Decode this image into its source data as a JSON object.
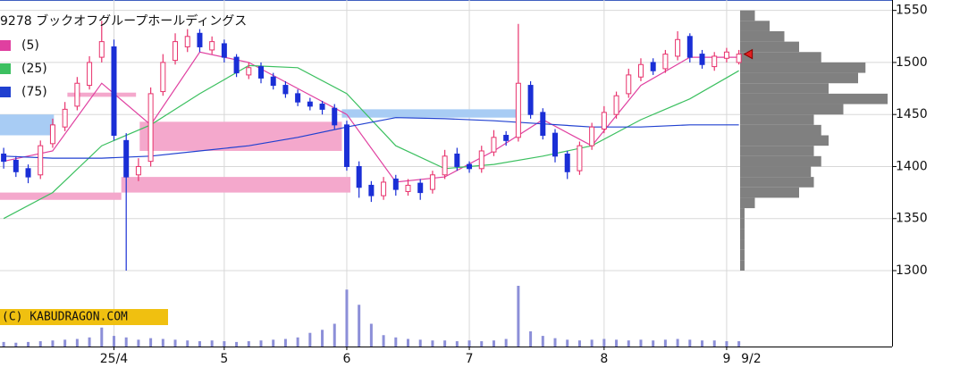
{
  "chart_data": {
    "type": "candlestick",
    "title": "9278 ブックオフグループホールディングス",
    "copyright": "(C) KABUDRAGON.COM",
    "up_color": "#e8336d",
    "down_color": "#1a2fd6",
    "grid": true,
    "xlim": [
      -0.3,
      72.5
    ],
    "ylim": [
      1294,
      1560
    ],
    "yticks": [
      1300,
      1350,
      1400,
      1450,
      1500,
      1550
    ],
    "xticks": [
      {
        "value": 9,
        "label": "25/4"
      },
      {
        "value": 18,
        "label": "5"
      },
      {
        "value": 28,
        "label": "6"
      },
      {
        "value": 38,
        "label": "7"
      },
      {
        "value": 49,
        "label": "8"
      },
      {
        "value": 59,
        "label": "9"
      }
    ],
    "last_label": {
      "value": 61,
      "label": "9/2"
    },
    "x": [
      0,
      1,
      2,
      3,
      4,
      5,
      6,
      7,
      8,
      9,
      10,
      11,
      12,
      13,
      14,
      15,
      16,
      17,
      18,
      19,
      20,
      21,
      22,
      23,
      24,
      25,
      26,
      27,
      28,
      29,
      30,
      31,
      32,
      33,
      34,
      35,
      36,
      37,
      38,
      39,
      40,
      41,
      42,
      43,
      44,
      45,
      46,
      47,
      48,
      49,
      50,
      51,
      52,
      53,
      54,
      55,
      56,
      57,
      58,
      59,
      60
    ],
    "open": [
      1412,
      1406,
      1398,
      1392,
      1422,
      1438,
      1458,
      1478,
      1505,
      1515,
      1425,
      1392,
      1405,
      1472,
      1502,
      1515,
      1528,
      1512,
      1518,
      1505,
      1488,
      1496,
      1486,
      1478,
      1470,
      1462,
      1460,
      1456,
      1440,
      1400,
      1382,
      1372,
      1388,
      1376,
      1384,
      1378,
      1392,
      1412,
      1402,
      1398,
      1414,
      1430,
      1428,
      1478,
      1452,
      1432,
      1412,
      1396,
      1420,
      1436,
      1450,
      1470,
      1486,
      1500,
      1494,
      1506,
      1525,
      1508,
      1496,
      1504,
      1500
    ],
    "high": [
      1418,
      1410,
      1402,
      1425,
      1446,
      1462,
      1486,
      1506,
      1540,
      1522,
      1432,
      1408,
      1476,
      1508,
      1528,
      1532,
      1532,
      1525,
      1522,
      1508,
      1500,
      1500,
      1490,
      1482,
      1474,
      1466,
      1463,
      1460,
      1444,
      1405,
      1386,
      1390,
      1392,
      1388,
      1388,
      1396,
      1416,
      1418,
      1405,
      1420,
      1435,
      1434,
      1537,
      1482,
      1456,
      1436,
      1415,
      1424,
      1442,
      1458,
      1472,
      1494,
      1504,
      1504,
      1512,
      1530,
      1528,
      1512,
      1510,
      1514,
      1512
    ],
    "low": [
      1398,
      1390,
      1384,
      1388,
      1418,
      1434,
      1454,
      1474,
      1500,
      1425,
      1300,
      1386,
      1400,
      1468,
      1498,
      1510,
      1510,
      1508,
      1500,
      1486,
      1484,
      1480,
      1474,
      1466,
      1458,
      1454,
      1450,
      1436,
      1396,
      1370,
      1366,
      1368,
      1372,
      1372,
      1368,
      1374,
      1388,
      1396,
      1394,
      1394,
      1410,
      1420,
      1424,
      1446,
      1426,
      1404,
      1388,
      1392,
      1416,
      1432,
      1446,
      1466,
      1482,
      1488,
      1490,
      1502,
      1500,
      1494,
      1492,
      1500,
      1498
    ],
    "close": [
      1405,
      1395,
      1390,
      1420,
      1440,
      1455,
      1480,
      1500,
      1520,
      1430,
      1390,
      1400,
      1470,
      1500,
      1520,
      1525,
      1515,
      1520,
      1505,
      1490,
      1495,
      1485,
      1478,
      1470,
      1462,
      1458,
      1455,
      1440,
      1400,
      1380,
      1372,
      1385,
      1378,
      1382,
      1375,
      1392,
      1410,
      1400,
      1398,
      1415,
      1428,
      1425,
      1480,
      1450,
      1430,
      1410,
      1395,
      1420,
      1438,
      1452,
      1468,
      1488,
      1498,
      1492,
      1508,
      1522,
      1505,
      1498,
      1506,
      1510,
      1508
    ],
    "series": [
      {
        "name": "(5)",
        "color": "#e040a0",
        "x": [
          0,
          4,
          8,
          12,
          16,
          20,
          24,
          28,
          32,
          36,
          40,
          44,
          48,
          52,
          56,
          60
        ],
        "values": [
          1405,
          1415,
          1480,
          1440,
          1510,
          1500,
          1475,
          1450,
          1385,
          1390,
          1415,
          1445,
          1420,
          1478,
          1505,
          1505
        ]
      },
      {
        "name": "(25)",
        "color": "#3cc060",
        "x": [
          0,
          4,
          8,
          12,
          16,
          20,
          24,
          28,
          32,
          36,
          40,
          44,
          48,
          52,
          56,
          60
        ],
        "values": [
          1350,
          1375,
          1420,
          1440,
          1470,
          1497,
          1495,
          1470,
          1420,
          1398,
          1402,
          1410,
          1420,
          1445,
          1465,
          1492
        ]
      },
      {
        "name": "(75)",
        "color": "#2040d0",
        "x": [
          0,
          4,
          8,
          12,
          16,
          20,
          24,
          28,
          32,
          36,
          40,
          44,
          48,
          52,
          56,
          60
        ],
        "values": [
          1410,
          1408,
          1408,
          1410,
          1415,
          1420,
          1428,
          1438,
          1447,
          1446,
          1444,
          1441,
          1438,
          1438,
          1440,
          1440
        ]
      }
    ],
    "zones": [
      {
        "color": "#f4a8cc",
        "x": [
          -0.3,
          9.6
        ],
        "y": [
          1368,
          1375
        ]
      },
      {
        "color": "#f4a8cc",
        "x": [
          9.6,
          28.3
        ],
        "y": [
          1375,
          1390
        ]
      },
      {
        "color": "#f4a8cc",
        "x": [
          11.1,
          27.6
        ],
        "y": [
          1415,
          1443
        ]
      },
      {
        "color": "#f4a8cc",
        "x": [
          5.2,
          10.8
        ],
        "y": [
          1467,
          1471
        ]
      },
      {
        "color": "#a8ccf4",
        "x": [
          -0.3,
          4.1
        ],
        "y": [
          1430,
          1450
        ]
      },
      {
        "color": "#a8ccf4",
        "x": [
          27.6,
          42.0
        ],
        "y": [
          1447,
          1455
        ]
      }
    ],
    "volume": {
      "color": "#8c8fd8",
      "ylim": [
        0,
        80
      ],
      "values": [
        6,
        5,
        6,
        7,
        8,
        9,
        10,
        12,
        25,
        14,
        12,
        9,
        11,
        10,
        9,
        8,
        7,
        8,
        7,
        6,
        7,
        8,
        9,
        10,
        12,
        18,
        22,
        30,
        75,
        55,
        30,
        15,
        12,
        10,
        9,
        8,
        8,
        7,
        8,
        7,
        8,
        10,
        80,
        20,
        14,
        11,
        9,
        8,
        9,
        10,
        9,
        8,
        9,
        8,
        9,
        10,
        9,
        8,
        8,
        7,
        7
      ]
    },
    "profile": {
      "color": "#808080",
      "xlim": [
        0,
        100
      ],
      "bins": [
        1300,
        1310,
        1320,
        1330,
        1340,
        1350,
        1360,
        1370,
        1380,
        1390,
        1400,
        1410,
        1420,
        1430,
        1440,
        1450,
        1460,
        1470,
        1480,
        1490,
        1500,
        1510,
        1520,
        1530,
        1540,
        1550
      ],
      "values": [
        3,
        3,
        3,
        3,
        3,
        3,
        10,
        40,
        50,
        48,
        55,
        50,
        60,
        55,
        50,
        70,
        100,
        60,
        80,
        85,
        55,
        40,
        30,
        20,
        10
      ]
    }
  }
}
